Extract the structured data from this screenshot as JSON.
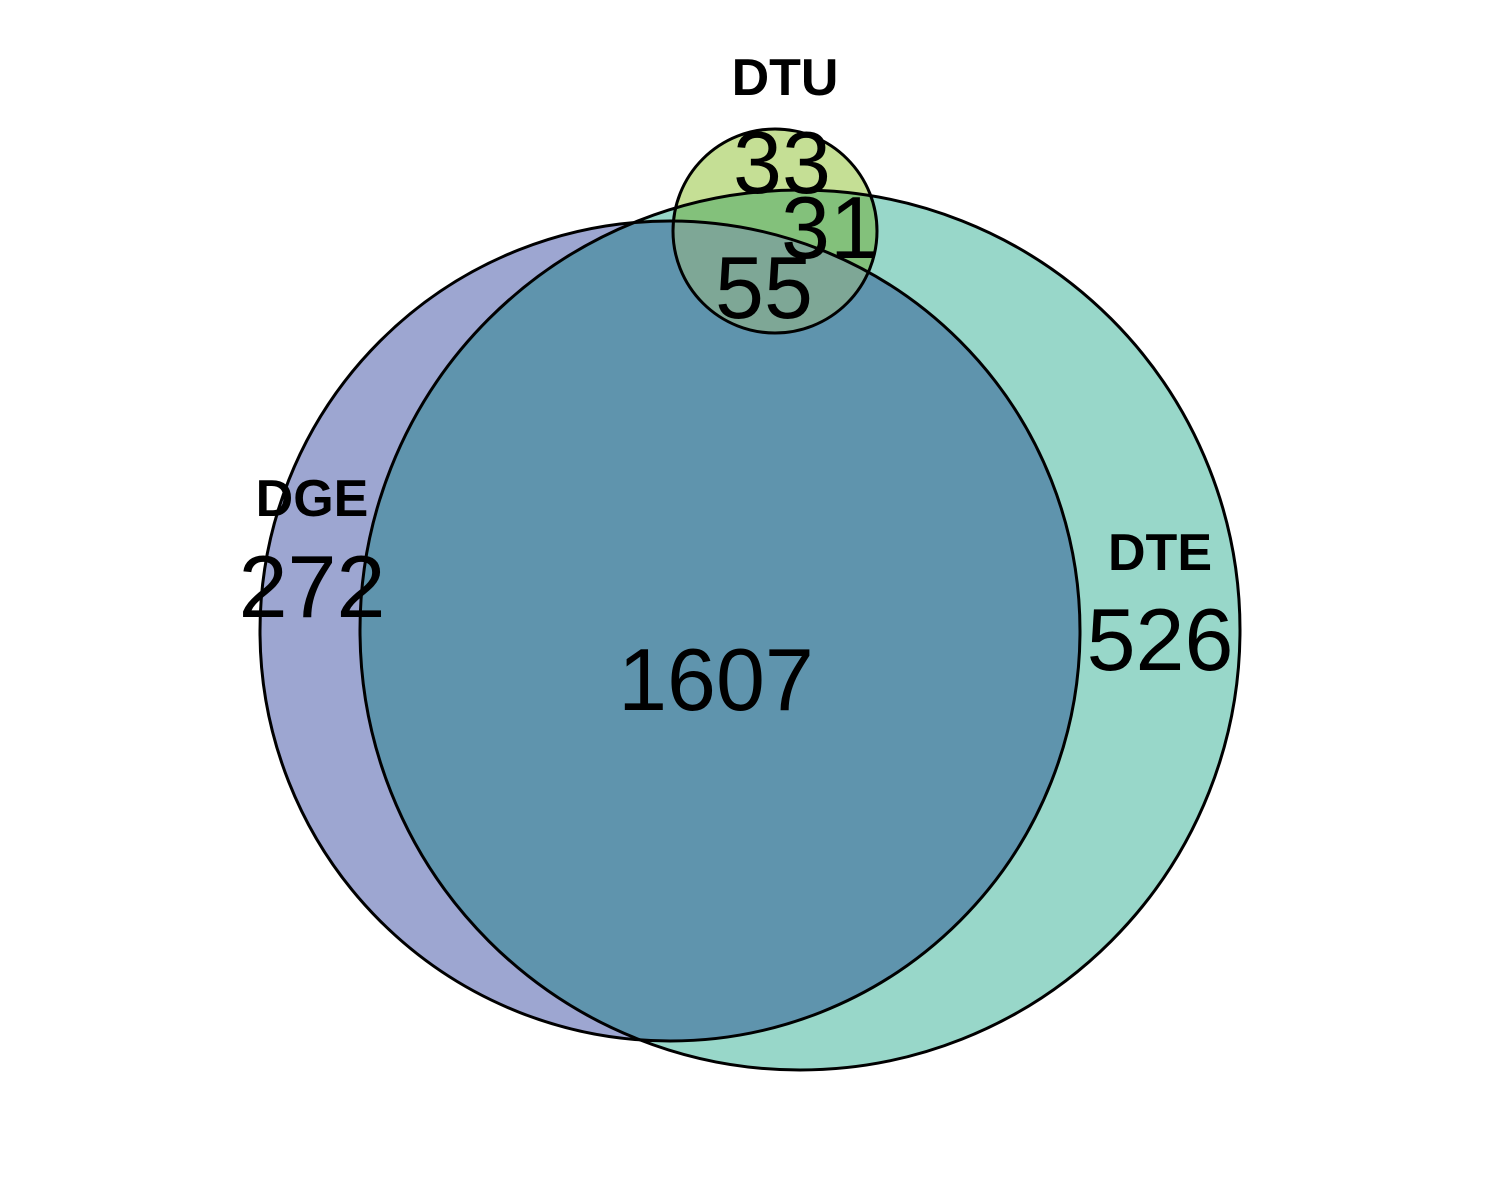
{
  "sets": {
    "dge": {
      "label": "DGE",
      "fill": "#9DA6D1"
    },
    "dte": {
      "label": "DTE",
      "fill": "#98D7C9"
    },
    "dtu": {
      "label": "DTU",
      "fill": "#C5DF95"
    }
  },
  "overlap_colors": {
    "dge_dte": "#5F94AD",
    "dte_dtu": "#83C17B",
    "dge_dte_dtu": "#7EA796"
  },
  "regions": {
    "dge_only": "272",
    "dte_only": "526",
    "dtu_only": "33",
    "dge_dte": "1607",
    "dte_dtu": "31",
    "dge_dte_dtu": "55"
  }
}
